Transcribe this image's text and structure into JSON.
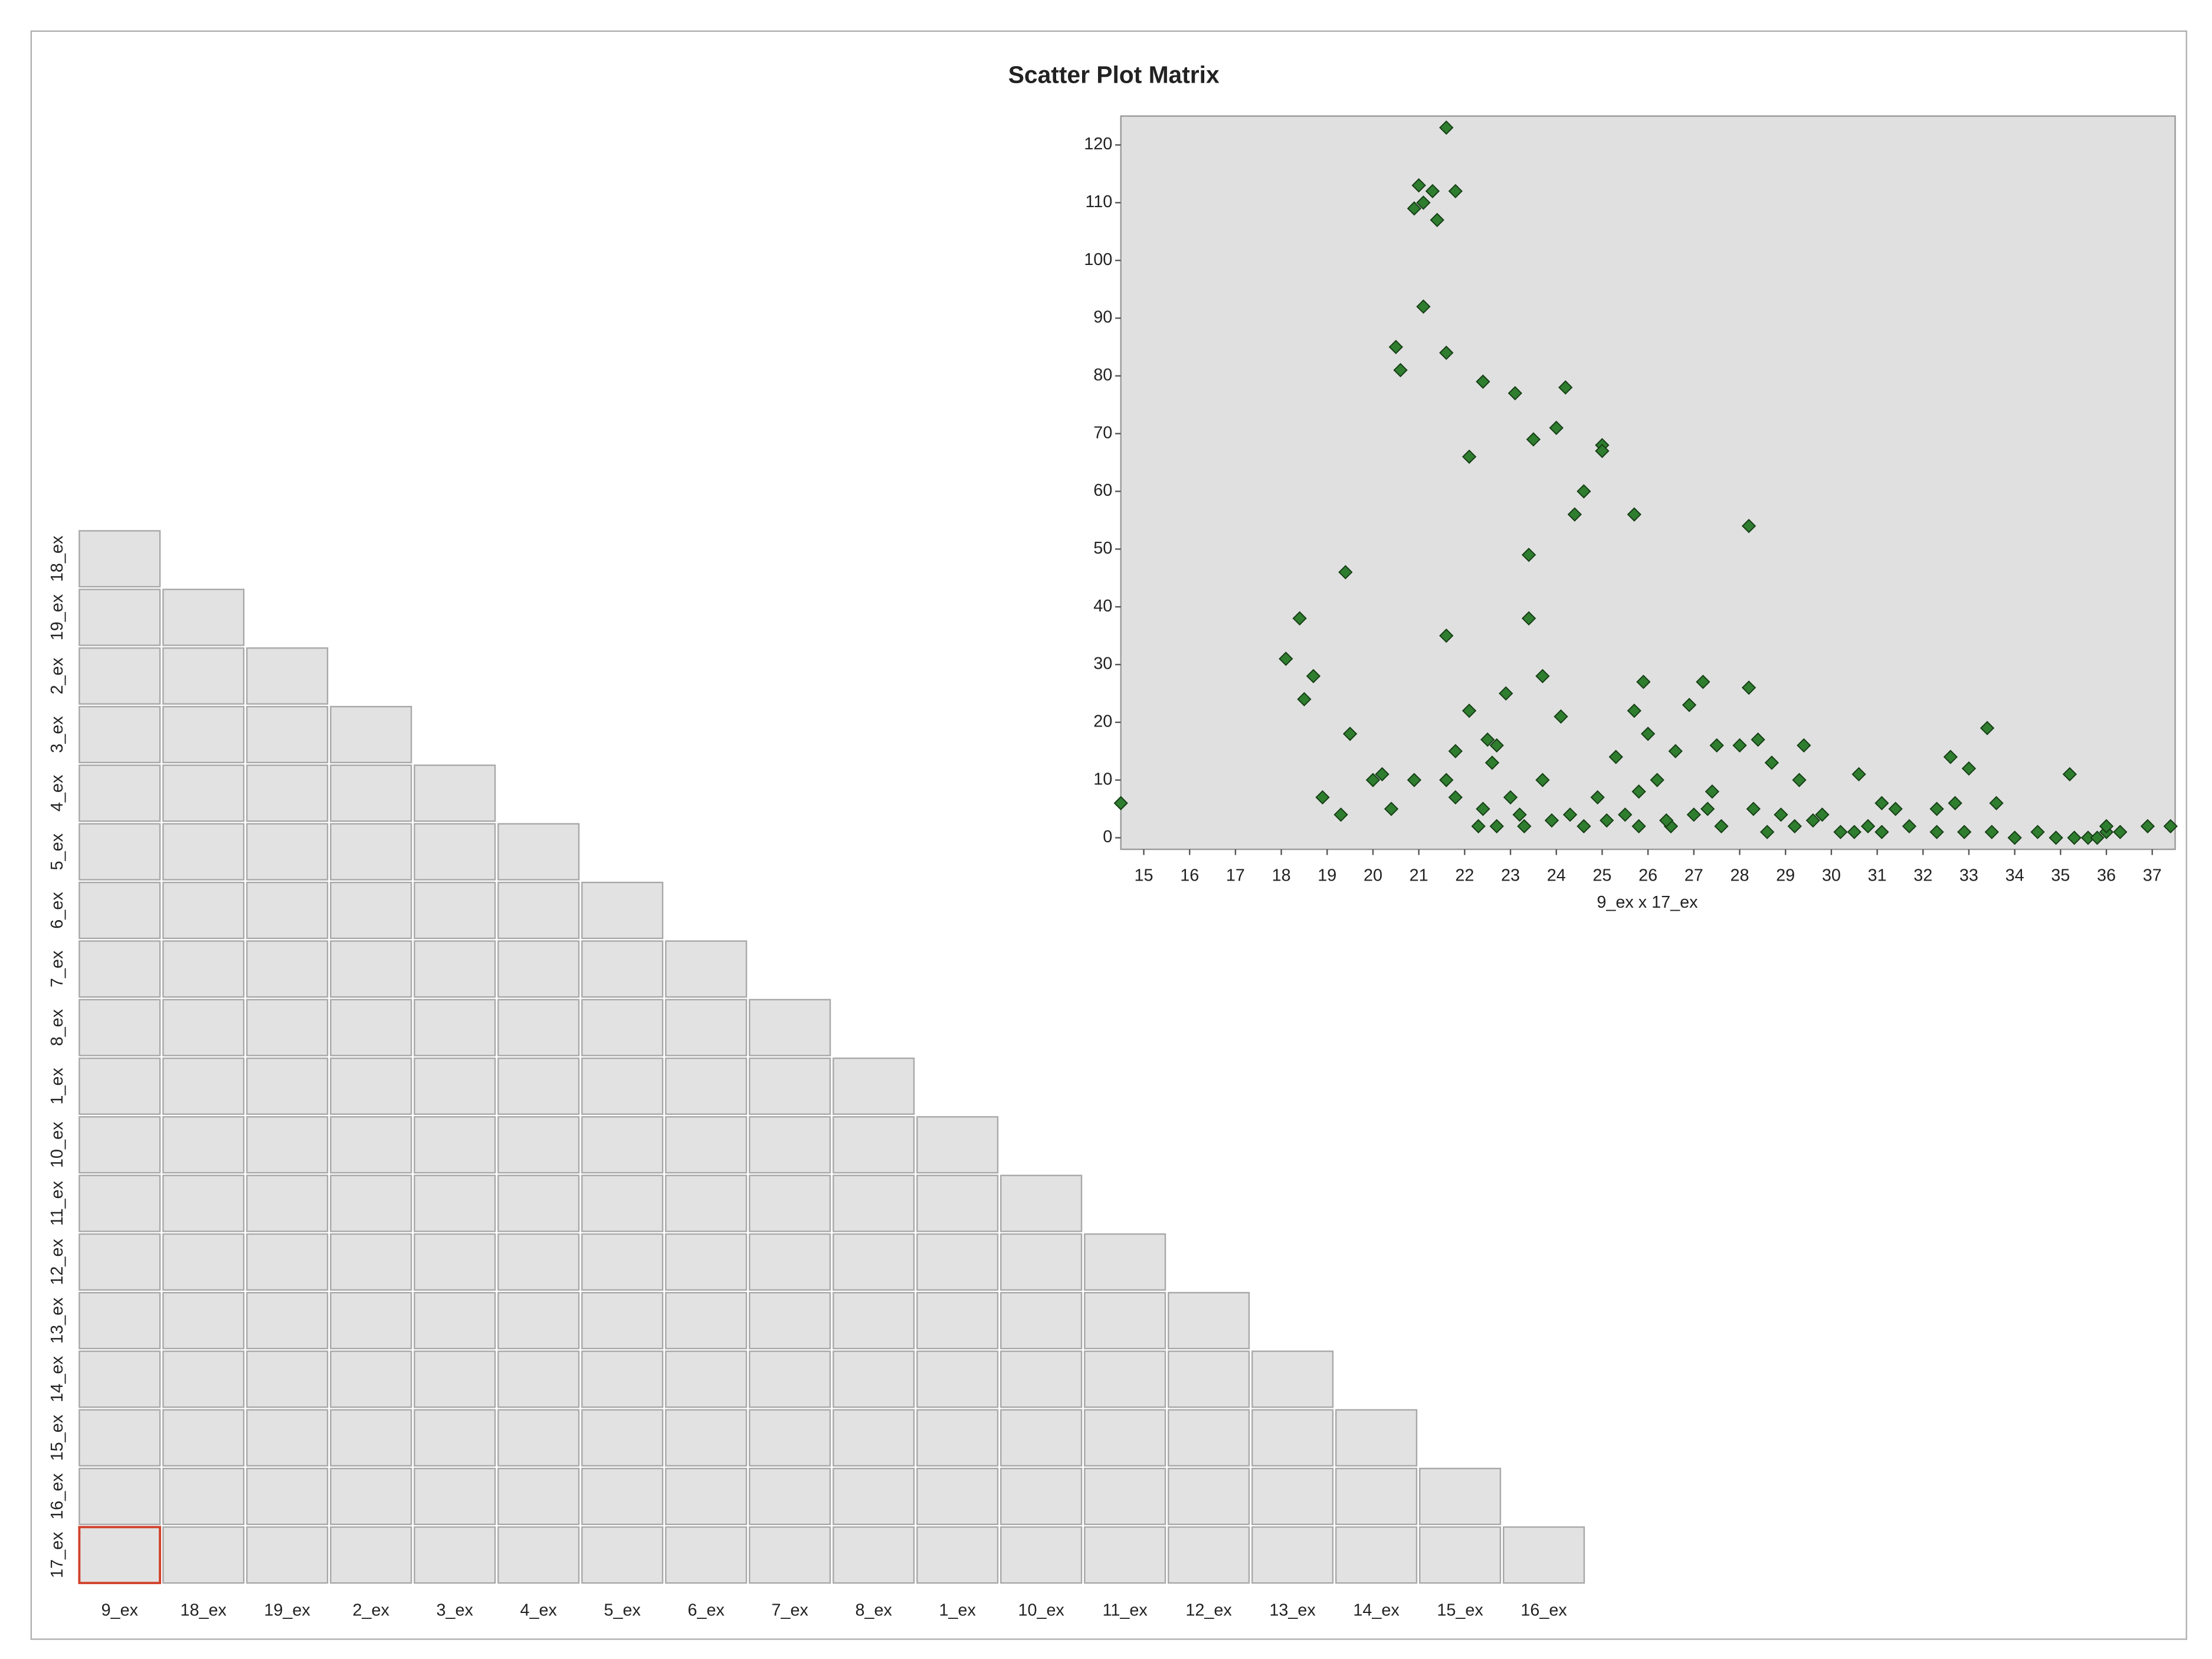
{
  "title": "Scatter Plot Matrix",
  "matrix": {
    "rows": [
      "18_ex",
      "19_ex",
      "2_ex",
      "3_ex",
      "4_ex",
      "5_ex",
      "6_ex",
      "7_ex",
      "8_ex",
      "1_ex",
      "10_ex",
      "11_ex",
      "12_ex",
      "13_ex",
      "14_ex",
      "15_ex",
      "16_ex",
      "17_ex"
    ],
    "columns": [
      "9_ex",
      "18_ex",
      "19_ex",
      "2_ex",
      "3_ex",
      "4_ex",
      "5_ex",
      "6_ex",
      "7_ex",
      "8_ex",
      "1_ex",
      "10_ex",
      "11_ex",
      "12_ex",
      "13_ex",
      "14_ex",
      "15_ex",
      "16_ex"
    ]
  },
  "chart_data": {
    "type": "scatter",
    "xlabel": "9_ex x 17_ex",
    "color": "#2f7d2f",
    "x": [
      14.5,
      21.6,
      21.0,
      21.3,
      21.8,
      20.9,
      21.1,
      21.4,
      21.1,
      20.5,
      20.6,
      21.6,
      22.4,
      23.1,
      24.2,
      24.0,
      23.5,
      25.0,
      25.0,
      22.1,
      24.6,
      24.4,
      25.7,
      28.2,
      23.4,
      19.4,
      18.4,
      23.4,
      21.6,
      18.1,
      18.7,
      23.7,
      25.9,
      27.2,
      28.2,
      18.5,
      22.9,
      26.9,
      25.7,
      22.1,
      24.1,
      33.4,
      19.5,
      26.0,
      22.5,
      28.4,
      29.4,
      21.8,
      22.7,
      27.5,
      28.0,
      25.3,
      32.6,
      26.6,
      22.6,
      28.7,
      33.0,
      20.2,
      21.6,
      30.6,
      35.2,
      23.7,
      20.0,
      20.9,
      26.2,
      29.3,
      18.9,
      25.8,
      27.4,
      21.8,
      19.3,
      20.4,
      23.0,
      24.9,
      28.3,
      29.8,
      31.1,
      32.7,
      33.6,
      31.4,
      32.3,
      22.3,
      22.7,
      23.3,
      23.9,
      24.6,
      25.1,
      25.8,
      26.5,
      27.0,
      27.6,
      28.6,
      29.2,
      30.2,
      30.5,
      31.1,
      31.7,
      32.3,
      32.9,
      33.5,
      34.0,
      34.5,
      34.9,
      35.3,
      35.6,
      36.0,
      36.3,
      36.9,
      37.4,
      22.4,
      23.2,
      24.3,
      25.5,
      26.4,
      27.3,
      28.9,
      29.6,
      30.8,
      36.0,
      35.8
    ],
    "values": [
      6,
      123,
      113,
      112,
      112,
      109,
      110,
      107,
      92,
      85,
      81,
      84,
      79,
      77,
      78,
      71,
      69,
      68,
      67,
      66,
      60,
      56,
      56,
      54,
      49,
      46,
      38,
      38,
      35,
      31,
      28,
      28,
      27,
      27,
      26,
      24,
      25,
      23,
      22,
      22,
      21,
      19,
      18,
      18,
      17,
      17,
      16,
      15,
      16,
      16,
      16,
      14,
      14,
      15,
      13,
      13,
      12,
      11,
      10,
      11,
      11,
      10,
      10,
      10,
      10,
      10,
      7,
      8,
      8,
      7,
      4,
      5,
      7,
      7,
      5,
      4,
      6,
      6,
      6,
      5,
      5,
      2,
      2,
      2,
      3,
      2,
      3,
      2,
      2,
      4,
      2,
      1,
      2,
      1,
      1,
      1,
      2,
      1,
      1,
      1,
      0,
      1,
      0,
      0,
      0,
      1,
      1,
      2,
      2,
      5,
      4,
      4,
      4,
      3,
      5,
      4,
      3,
      2,
      2,
      0
    ],
    "xlim": [
      14.5,
      37.5
    ],
    "ylim": [
      -2,
      125
    ],
    "xticks": [
      15,
      16,
      17,
      18,
      19,
      20,
      21,
      22,
      23,
      24,
      25,
      26,
      27,
      28,
      29,
      30,
      31,
      32,
      33,
      34,
      35,
      36,
      37
    ],
    "yticks": [
      0,
      10,
      20,
      30,
      40,
      50,
      60,
      70,
      80,
      90,
      100,
      110,
      120
    ]
  }
}
